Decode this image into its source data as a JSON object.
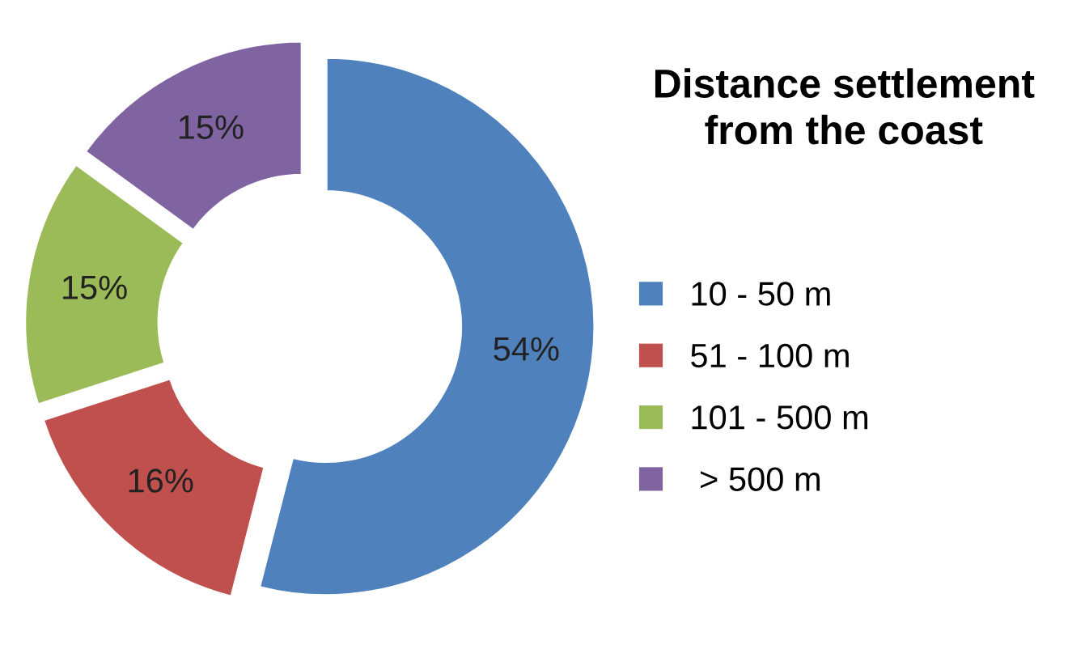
{
  "chart_data": {
    "type": "donut",
    "title": "Distance settlement\nfrom the coast",
    "categories": [
      "10 - 50 m",
      "51 - 100 m",
      "101 - 500 m",
      " > 500 m"
    ],
    "values": [
      54,
      16,
      15,
      15
    ],
    "colors": [
      "#4f81bd",
      "#c0504d",
      "#9bbb59",
      "#8064a2"
    ],
    "value_labels": [
      "54%",
      "16%",
      "15%",
      "15%"
    ],
    "legend": "right"
  }
}
